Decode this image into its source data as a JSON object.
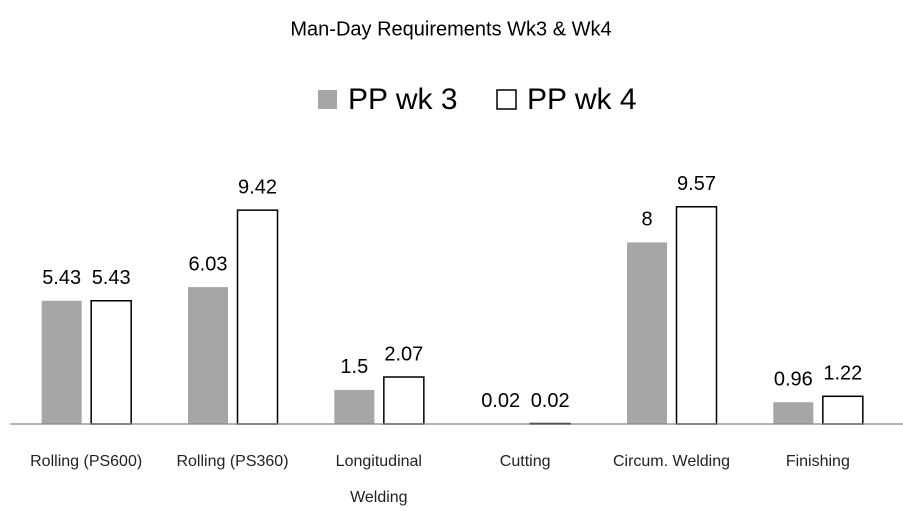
{
  "chart_data": {
    "type": "bar",
    "title": "Man-Day Requirements Wk3 & Wk4",
    "categories": [
      "Rolling (PS600)",
      "Rolling (PS360)",
      "Longitudinal Welding",
      "Cutting",
      "Circum. Welding",
      "Finishing"
    ],
    "series": [
      {
        "name": "PP wk 3",
        "color": "#a6a6a6",
        "values": [
          5.43,
          6.03,
          1.5,
          0.02,
          8,
          0.96
        ]
      },
      {
        "name": "PP wk 4",
        "color": "#ffffff",
        "values": [
          5.43,
          9.42,
          2.07,
          0.02,
          9.57,
          1.22
        ]
      }
    ],
    "ylim": [
      0,
      10
    ],
    "legend": "top"
  }
}
